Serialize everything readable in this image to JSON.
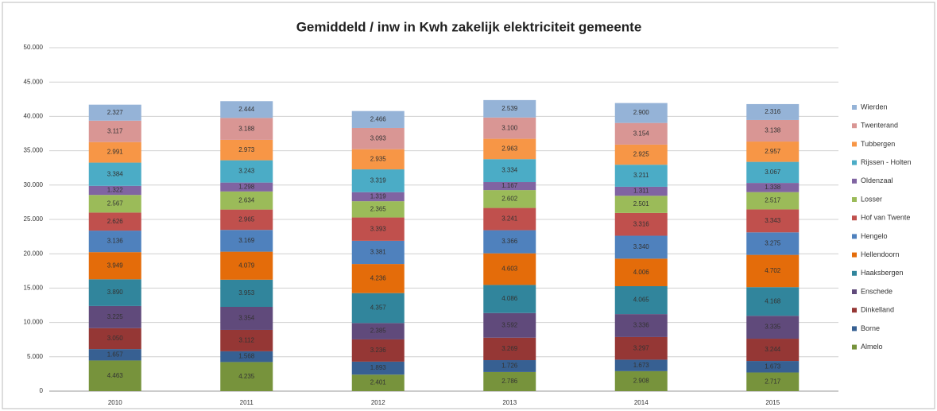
{
  "chart_data": {
    "type": "stacked_bar",
    "title": "Gemiddeld / inw in Kwh zakelijk elektriciteit gemeente",
    "categories": [
      "2010",
      "2011",
      "2012",
      "2013",
      "2014",
      "2015"
    ],
    "ylim": [
      0,
      50000
    ],
    "yticks": [
      0,
      {
        "value": 5000,
        "label": "5.000"
      },
      {
        "value": 10000,
        "label": "10.000"
      },
      {
        "value": 15000,
        "label": "15.000"
      },
      {
        "value": 20000,
        "label": "20.000"
      },
      {
        "value": 25000,
        "label": "25.000"
      },
      {
        "value": 30000,
        "label": "30.000"
      },
      {
        "value": 35000,
        "label": "35.000"
      },
      {
        "value": 40000,
        "label": "40.000"
      },
      {
        "value": 45000,
        "label": "45.000"
      },
      {
        "value": 50000,
        "label": "50.000"
      }
    ],
    "grid": true,
    "legend": "right",
    "series": [
      {
        "name": "Almelo",
        "color": "#77933c",
        "values": [
          4463,
          4235,
          2401,
          2786,
          2908,
          2717
        ],
        "value_labels": [
          "4.463",
          "4.235",
          "2.401",
          "2.786",
          "2.908",
          "2.717"
        ]
      },
      {
        "name": "Borne",
        "color": "#376092",
        "values": [
          1657,
          1568,
          1893,
          1726,
          1673,
          1673
        ],
        "value_labels": [
          "1.657",
          "1.568",
          "1.893",
          "1.726",
          "1.673",
          "1.673"
        ]
      },
      {
        "name": "Dinkelland",
        "color": "#953735",
        "values": [
          3050,
          3112,
          3236,
          3269,
          3297,
          3244
        ],
        "value_labels": [
          "3.050",
          "3.112",
          "3.236",
          "3.269",
          "3.297",
          "3.244"
        ]
      },
      {
        "name": "Enschede",
        "color": "#604a7b",
        "values": [
          3225,
          3354,
          2385,
          3592,
          3336,
          3335
        ],
        "value_labels": [
          "3.225",
          "3.354",
          "2.385",
          "3.592",
          "3.336",
          "3.335"
        ]
      },
      {
        "name": "Haaksbergen",
        "color": "#31859c",
        "values": [
          3890,
          3953,
          4357,
          4086,
          4065,
          4168
        ],
        "value_labels": [
          "3.890",
          "3.953",
          "4.357",
          "4.086",
          "4.065",
          "4.168"
        ]
      },
      {
        "name": "Hellendoorn",
        "color": "#e46c0a",
        "values": [
          3949,
          4079,
          4236,
          4603,
          4006,
          4702
        ],
        "value_labels": [
          "3.949",
          "4.079",
          "4.236",
          "4.603",
          "4.006",
          "4.702"
        ]
      },
      {
        "name": "Hengelo",
        "color": "#4f81bd",
        "values": [
          3136,
          3169,
          3381,
          3366,
          3340,
          3275
        ],
        "value_labels": [
          "3.136",
          "3.169",
          "3.381",
          "3.366",
          "3.340",
          "3.275"
        ]
      },
      {
        "name": "Hof van Twente",
        "color": "#c0504d",
        "values": [
          2626,
          2965,
          3393,
          3241,
          3316,
          3343
        ],
        "value_labels": [
          "2.626",
          "2.965",
          "3.393",
          "3.241",
          "3.316",
          "3.343"
        ]
      },
      {
        "name": "Losser",
        "color": "#9bbb59",
        "values": [
          2567,
          2634,
          2365,
          2602,
          2501,
          2517
        ],
        "value_labels": [
          "2.567",
          "2.634",
          "2.365",
          "2.602",
          "2.501",
          "2.517"
        ]
      },
      {
        "name": "Oldenzaal",
        "color": "#8064a2",
        "values": [
          1322,
          1298,
          1319,
          1167,
          1311,
          1338
        ],
        "value_labels": [
          "1.322",
          "1.298",
          "1.319",
          "1.167",
          "1.311",
          "1.338"
        ]
      },
      {
        "name": "Rijssen - Holten",
        "color": "#4bacc6",
        "values": [
          3384,
          3243,
          3319,
          3334,
          3211,
          3067
        ],
        "value_labels": [
          "3.384",
          "3.243",
          "3.319",
          "3.334",
          "3.211",
          "3.067"
        ]
      },
      {
        "name": "Tubbergen",
        "color": "#f79646",
        "values": [
          2991,
          2973,
          2935,
          2963,
          2925,
          2957
        ],
        "value_labels": [
          "2.991",
          "2.973",
          "2.935",
          "2.963",
          "2.925",
          "2.957"
        ]
      },
      {
        "name": "Twenterand",
        "color": "#d99694",
        "values": [
          3117,
          3188,
          3093,
          3100,
          3154,
          3138
        ],
        "value_labels": [
          "3.117",
          "3.188",
          "3.093",
          "3.100",
          "3.154",
          "3.138"
        ]
      },
      {
        "name": "Wierden",
        "color": "#95b3d7",
        "values": [
          2327,
          2444,
          2466,
          2539,
          2900,
          2316
        ],
        "value_labels": [
          "2.327",
          "2.444",
          "2.466",
          "2.539",
          "2.900",
          "2.316"
        ]
      }
    ]
  }
}
